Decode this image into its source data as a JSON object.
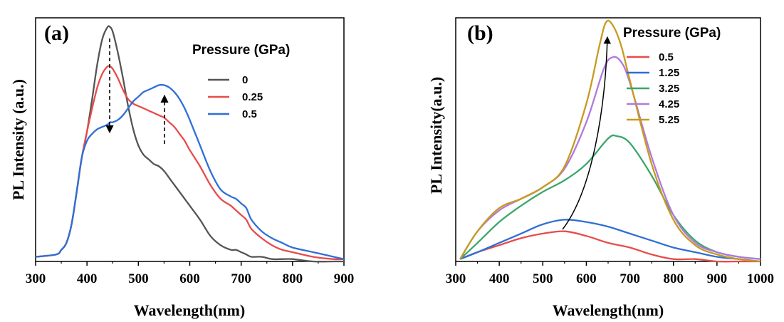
{
  "chart_data": [
    {
      "type": "line",
      "panel_label": "(a)",
      "xlabel": "Wavelength(nm)",
      "ylabel": "PL Intensity (a.u.)",
      "xlim": [
        300,
        900
      ],
      "ylim": [
        0,
        1.05
      ],
      "xticks": [
        300,
        400,
        500,
        600,
        700,
        800,
        900
      ],
      "y_tick_labels": false,
      "grid": false,
      "legend": {
        "title": "Pressure (GPa)",
        "placement": "top-right"
      },
      "series": [
        {
          "name": "0",
          "color": "#555555",
          "x": [
            300,
            340,
            350,
            360,
            370,
            380,
            390,
            400,
            410,
            420,
            430,
            440,
            445,
            450,
            460,
            470,
            480,
            490,
            500,
            510,
            520,
            530,
            540,
            550,
            560,
            570,
            580,
            590,
            600,
            620,
            640,
            660,
            680,
            690,
            700,
            710,
            720,
            740,
            760,
            780,
            800,
            840,
            880,
            900
          ],
          "y": [
            0.02,
            0.03,
            0.05,
            0.08,
            0.16,
            0.3,
            0.45,
            0.56,
            0.7,
            0.85,
            0.96,
            1.01,
            1.01,
            0.99,
            0.9,
            0.79,
            0.67,
            0.57,
            0.5,
            0.46,
            0.44,
            0.42,
            0.41,
            0.39,
            0.36,
            0.33,
            0.3,
            0.27,
            0.24,
            0.18,
            0.11,
            0.07,
            0.05,
            0.05,
            0.04,
            0.03,
            0.02,
            0.02,
            0.01,
            0.01,
            0.01,
            0,
            0,
            0
          ]
        },
        {
          "name": "0.25",
          "color": "#e84b4b",
          "x": [
            300,
            340,
            350,
            360,
            370,
            380,
            390,
            400,
            410,
            420,
            430,
            440,
            445,
            450,
            460,
            470,
            480,
            490,
            500,
            510,
            520,
            530,
            540,
            550,
            560,
            570,
            580,
            590,
            600,
            620,
            640,
            660,
            680,
            690,
            700,
            710,
            720,
            740,
            760,
            780,
            800,
            840,
            880,
            900
          ],
          "y": [
            0.02,
            0.03,
            0.05,
            0.08,
            0.16,
            0.3,
            0.45,
            0.56,
            0.66,
            0.75,
            0.81,
            0.84,
            0.84,
            0.83,
            0.79,
            0.74,
            0.7,
            0.68,
            0.67,
            0.66,
            0.65,
            0.64,
            0.63,
            0.62,
            0.6,
            0.58,
            0.55,
            0.52,
            0.48,
            0.41,
            0.33,
            0.27,
            0.24,
            0.22,
            0.2,
            0.18,
            0.14,
            0.1,
            0.07,
            0.05,
            0.04,
            0.02,
            0.01,
            0.01
          ]
        },
        {
          "name": "0.5",
          "color": "#2f6fd6",
          "x": [
            300,
            340,
            350,
            360,
            370,
            380,
            390,
            400,
            410,
            420,
            430,
            440,
            445,
            450,
            460,
            470,
            480,
            490,
            500,
            510,
            520,
            530,
            540,
            550,
            560,
            570,
            580,
            590,
            600,
            620,
            640,
            660,
            680,
            690,
            700,
            710,
            720,
            740,
            760,
            780,
            800,
            840,
            880,
            900
          ],
          "y": [
            0.02,
            0.03,
            0.05,
            0.08,
            0.16,
            0.3,
            0.45,
            0.52,
            0.55,
            0.57,
            0.58,
            0.59,
            0.6,
            0.6,
            0.61,
            0.63,
            0.66,
            0.69,
            0.71,
            0.73,
            0.74,
            0.75,
            0.76,
            0.76,
            0.75,
            0.73,
            0.7,
            0.66,
            0.61,
            0.5,
            0.39,
            0.31,
            0.28,
            0.27,
            0.25,
            0.23,
            0.18,
            0.13,
            0.1,
            0.08,
            0.06,
            0.04,
            0.02,
            0.01
          ]
        }
      ]
    },
    {
      "type": "line",
      "panel_label": "(b)",
      "xlabel": "Wavelength(nm)",
      "ylabel": "PL Intensity(a.u.)",
      "xlim": [
        300,
        1000
      ],
      "ylim": [
        0,
        1.05
      ],
      "xticks": [
        300,
        400,
        500,
        600,
        700,
        800,
        900,
        1000
      ],
      "y_tick_labels": false,
      "grid": false,
      "legend": {
        "title": "Pressure (GPa)",
        "placement": "top-right"
      },
      "series": [
        {
          "name": "0.5",
          "color": "#e84b4b",
          "x": [
            310,
            350,
            400,
            450,
            500,
            550,
            600,
            650,
            700,
            750,
            800,
            850,
            900,
            950,
            1000
          ],
          "y": [
            0.01,
            0.04,
            0.07,
            0.1,
            0.12,
            0.13,
            0.11,
            0.08,
            0.06,
            0.03,
            0.01,
            0.01,
            0,
            0,
            0
          ]
        },
        {
          "name": "1.25",
          "color": "#2f6fd6",
          "x": [
            310,
            350,
            400,
            450,
            500,
            550,
            600,
            650,
            700,
            750,
            800,
            850,
            900,
            950,
            1000
          ],
          "y": [
            0.01,
            0.04,
            0.08,
            0.12,
            0.16,
            0.18,
            0.17,
            0.15,
            0.12,
            0.09,
            0.06,
            0.04,
            0.02,
            0.01,
            0
          ]
        },
        {
          "name": "3.25",
          "color": "#3aa66d",
          "x": [
            310,
            350,
            400,
            450,
            500,
            550,
            600,
            650,
            670,
            700,
            750,
            800,
            850,
            900,
            950,
            1000
          ],
          "y": [
            0.01,
            0.08,
            0.17,
            0.24,
            0.3,
            0.35,
            0.42,
            0.53,
            0.54,
            0.51,
            0.37,
            0.2,
            0.09,
            0.04,
            0.02,
            0.01
          ]
        },
        {
          "name": "4.25",
          "color": "#b07ae0",
          "x": [
            310,
            350,
            400,
            450,
            500,
            550,
            600,
            640,
            660,
            680,
            700,
            750,
            800,
            850,
            900,
            950,
            1000
          ],
          "y": [
            0.01,
            0.13,
            0.22,
            0.27,
            0.32,
            0.4,
            0.6,
            0.83,
            0.88,
            0.86,
            0.77,
            0.45,
            0.2,
            0.08,
            0.04,
            0.02,
            0.01
          ]
        },
        {
          "name": "5.25",
          "color": "#c99a1e",
          "x": [
            310,
            350,
            400,
            450,
            500,
            550,
            600,
            630,
            645,
            660,
            680,
            700,
            750,
            800,
            850,
            900,
            950,
            1000
          ],
          "y": [
            0.01,
            0.13,
            0.23,
            0.27,
            0.32,
            0.41,
            0.68,
            0.93,
            1.03,
            1.02,
            0.93,
            0.78,
            0.42,
            0.18,
            0.07,
            0.03,
            0.01,
            0
          ]
        }
      ]
    }
  ]
}
